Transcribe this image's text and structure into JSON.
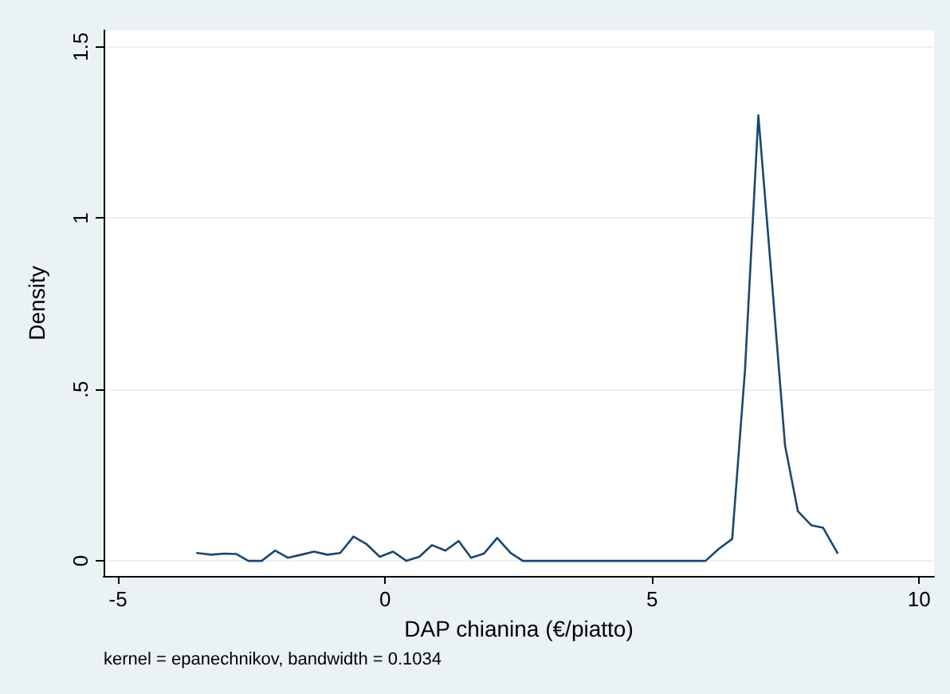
{
  "chart_data": {
    "type": "line",
    "xlabel": "DAP chianina (€/piatto)",
    "ylabel": "Density",
    "annotations": [
      "kernel = epanechnikov, bandwidth = 0.1034"
    ],
    "x": [
      -3.52,
      -3.26,
      -3.01,
      -2.78,
      -2.56,
      -2.31,
      -2.06,
      -1.82,
      -1.57,
      -1.33,
      -1.08,
      -0.84,
      -0.59,
      -0.34,
      -0.1,
      0.15,
      0.4,
      0.64,
      0.88,
      1.13,
      1.38,
      1.61,
      1.85,
      2.1,
      2.35,
      2.58,
      3.5,
      4.5,
      5.5,
      6.0,
      6.25,
      6.5,
      6.74,
      6.99,
      7.24,
      7.49,
      7.73,
      7.98,
      8.2,
      8.47
    ],
    "series": [
      {
        "color": "#1a476f",
        "values": [
          0.023,
          0.018,
          0.021,
          0.02,
          0,
          0,
          0.03,
          0.009,
          0.018,
          0.027,
          0.018,
          0.023,
          0.071,
          0.048,
          0.012,
          0.027,
          0,
          0.012,
          0.046,
          0.03,
          0.058,
          0.009,
          0.021,
          0.067,
          0.023,
          0,
          0,
          0,
          0,
          0,
          0.035,
          0.064,
          0.557,
          1.3,
          0.823,
          0.336,
          0.145,
          0.104,
          0.097,
          0.023
        ]
      }
    ],
    "xlim": [
      -5.27,
      10.28
    ],
    "xticks": [
      -5,
      0,
      5,
      10
    ],
    "ylim": [
      -0.044,
      1.548
    ],
    "yticks": [
      {
        "value": 0,
        "label": "0"
      },
      {
        "value": 0.5,
        "label": ".5"
      },
      {
        "value": 1,
        "label": "1"
      },
      {
        "value": 1.5,
        "label": "1.5"
      }
    ],
    "grid": "y",
    "marker": "none",
    "line_style": "solid"
  }
}
